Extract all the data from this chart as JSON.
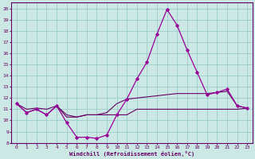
{
  "title": "",
  "xlabel": "Windchill (Refroidissement éolien,°C)",
  "ylabel": "",
  "background_color": "#cce8e4",
  "grid_color": "#99cccc",
  "line_color": "#990099",
  "line_color2": "#660066",
  "xlim": [
    -0.5,
    23.5
  ],
  "ylim": [
    8,
    20.5
  ],
  "yticks": [
    8,
    9,
    10,
    11,
    12,
    13,
    14,
    15,
    16,
    17,
    18,
    19,
    20
  ],
  "xticks": [
    0,
    1,
    2,
    3,
    4,
    5,
    6,
    7,
    8,
    9,
    10,
    11,
    12,
    13,
    14,
    15,
    16,
    17,
    18,
    19,
    20,
    21,
    22,
    23
  ],
  "hours": [
    0,
    1,
    2,
    3,
    4,
    5,
    6,
    7,
    8,
    9,
    10,
    11,
    12,
    13,
    14,
    15,
    16,
    17,
    18,
    19,
    20,
    21,
    22,
    23
  ],
  "temp_line": [
    11.5,
    10.7,
    11.0,
    10.5,
    11.3,
    9.8,
    8.5,
    8.5,
    8.4,
    8.7,
    10.5,
    11.9,
    13.7,
    15.2,
    17.7,
    19.9,
    18.5,
    16.3,
    14.3,
    12.3,
    12.5,
    12.8,
    11.3,
    11.1
  ],
  "windchill_line": [
    11.5,
    10.7,
    11.0,
    10.5,
    11.3,
    10.3,
    10.3,
    10.5,
    10.5,
    10.5,
    10.5,
    10.5,
    11.0,
    11.0,
    11.0,
    11.0,
    11.0,
    11.0,
    11.0,
    11.0,
    11.0,
    11.0,
    11.0,
    11.1
  ],
  "avg_line": [
    11.5,
    11.0,
    11.1,
    11.0,
    11.3,
    10.5,
    10.3,
    10.5,
    10.5,
    10.7,
    11.5,
    11.9,
    12.0,
    12.1,
    12.2,
    12.3,
    12.4,
    12.4,
    12.4,
    12.4,
    12.5,
    12.6,
    11.3,
    11.1
  ]
}
